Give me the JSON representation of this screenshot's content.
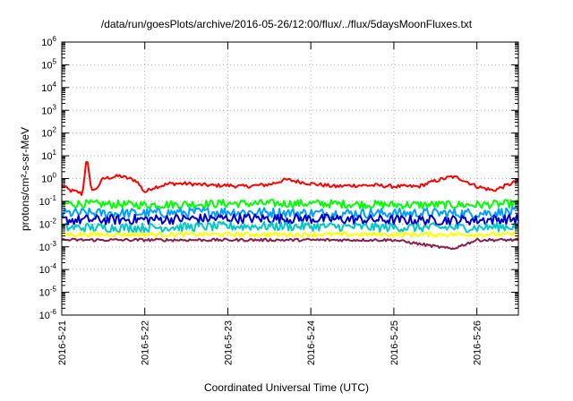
{
  "chart_data": {
    "type": "line",
    "title": "/data/run/goesPlots/archive/2016-05-26/12:00/flux/../flux/5daysMoonFluxes.txt",
    "xlabel": "Coordinated Universal Time (UTC)",
    "ylabel": "protons/cm²-s-sr-MeV",
    "y_scale": "log",
    "ylim": [
      "1e-6",
      "1e6"
    ],
    "y_tick_exponents": [
      -6,
      -5,
      -4,
      -3,
      -2,
      -1,
      0,
      1,
      2,
      3,
      4,
      5,
      6
    ],
    "xlim": [
      "2016-05-21 00:00",
      "2016-05-26 12:00"
    ],
    "x_ticks": [
      "2016-5-21",
      "2016-5-22",
      "2016-5-23",
      "2016-5-24",
      "2016-5-25",
      "2016-5-26"
    ],
    "grid": true,
    "legend": "none",
    "series": [
      {
        "color": "#ff0000",
        "x_days": [
          0,
          0.1,
          0.2,
          0.25,
          0.3,
          0.35,
          0.4,
          0.5,
          0.7,
          0.9,
          1.0,
          1.1,
          1.3,
          1.5,
          1.8,
          2.0,
          2.2,
          2.5,
          2.7,
          3.0,
          3.3,
          3.5,
          3.8,
          4.0,
          4.3,
          4.5,
          4.7,
          4.8,
          5.0,
          5.2,
          5.5
        ],
        "values": [
          0.5,
          0.3,
          0.25,
          0.2,
          10,
          0.4,
          0.3,
          1.0,
          1.3,
          0.8,
          0.25,
          0.4,
          0.6,
          0.6,
          0.5,
          0.5,
          0.45,
          0.55,
          0.9,
          0.6,
          0.45,
          0.5,
          0.5,
          0.45,
          0.45,
          0.8,
          1.2,
          1.0,
          0.45,
          0.3,
          0.8
        ]
      },
      {
        "color": "#00ff00",
        "x_days": [
          0,
          1,
          2,
          3,
          4,
          5,
          5.5
        ],
        "values": [
          0.08,
          0.07,
          0.08,
          0.08,
          0.07,
          0.07,
          0.08
        ]
      },
      {
        "color": "#00a0ff",
        "x_days": [
          0,
          1,
          2,
          3,
          4,
          5,
          5.5
        ],
        "values": [
          0.03,
          0.03,
          0.035,
          0.03,
          0.03,
          0.03,
          0.035
        ]
      },
      {
        "color": "#0000c8",
        "x_days": [
          0,
          1,
          2,
          3,
          4,
          5,
          5.5
        ],
        "values": [
          0.015,
          0.016,
          0.018,
          0.017,
          0.015,
          0.015,
          0.017
        ]
      },
      {
        "color": "#00c8c8",
        "x_days": [
          0,
          1,
          2,
          3,
          4,
          5,
          5.5
        ],
        "values": [
          0.007,
          0.007,
          0.008,
          0.008,
          0.007,
          0.007,
          0.008
        ]
      },
      {
        "color": "#ffff00",
        "x_days": [
          0,
          5.5
        ],
        "values": [
          0.0035,
          0.0035
        ]
      },
      {
        "color": "#8b1a50",
        "x_days": [
          0,
          1,
          2,
          3,
          4,
          4.7,
          5,
          5.5
        ],
        "values": [
          0.002,
          0.002,
          0.002,
          0.002,
          0.002,
          0.0008,
          0.002,
          0.002
        ]
      }
    ]
  }
}
